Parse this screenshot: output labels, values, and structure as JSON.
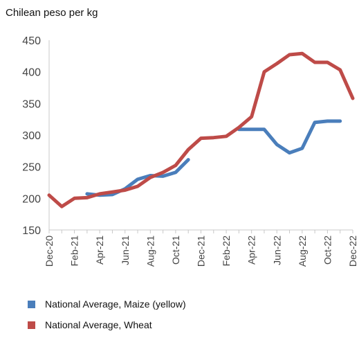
{
  "chart_data": {
    "type": "line",
    "title": "Chilean peso per kg",
    "x": [
      "Dec-20",
      "Jan-21",
      "Feb-21",
      "Mar-21",
      "Apr-21",
      "May-21",
      "Jun-21",
      "Jul-21",
      "Aug-21",
      "Sep-21",
      "Oct-21",
      "Nov-21",
      "Dec-21",
      "Jan-22",
      "Feb-22",
      "Mar-22",
      "Apr-22",
      "May-22",
      "Jun-22",
      "Jul-22",
      "Aug-22",
      "Sep-22",
      "Oct-22",
      "Nov-22",
      "Dec-22"
    ],
    "x_tick_labels": [
      "Dec-20",
      "Feb-21",
      "Apr-21",
      "Jun-21",
      "Aug-21",
      "Oct-21",
      "Dec-21",
      "Feb-22",
      "Apr-22",
      "Jun-22",
      "Aug-22",
      "Oct-22",
      "Dec-22"
    ],
    "y_ticks": [
      150,
      200,
      250,
      300,
      350,
      400,
      450
    ],
    "ylim": [
      150,
      450
    ],
    "grid": false,
    "legend_position": "bottom-left",
    "series": [
      {
        "name": "National Average, Maize (yellow)",
        "color": "#4a7ebb",
        "values": [
          null,
          null,
          null,
          207,
          205,
          206,
          215,
          230,
          236,
          235,
          241,
          261,
          null,
          null,
          null,
          309,
          309,
          309,
          285,
          272,
          279,
          320,
          322,
          322,
          null
        ]
      },
      {
        "name": "National Average, Wheat",
        "color": "#be4b48",
        "values": [
          205,
          187,
          200,
          201,
          207,
          210,
          213,
          219,
          233,
          241,
          252,
          277,
          295,
          296,
          298,
          312,
          329,
          400,
          413,
          427,
          429,
          415,
          415,
          403,
          358
        ]
      }
    ]
  }
}
